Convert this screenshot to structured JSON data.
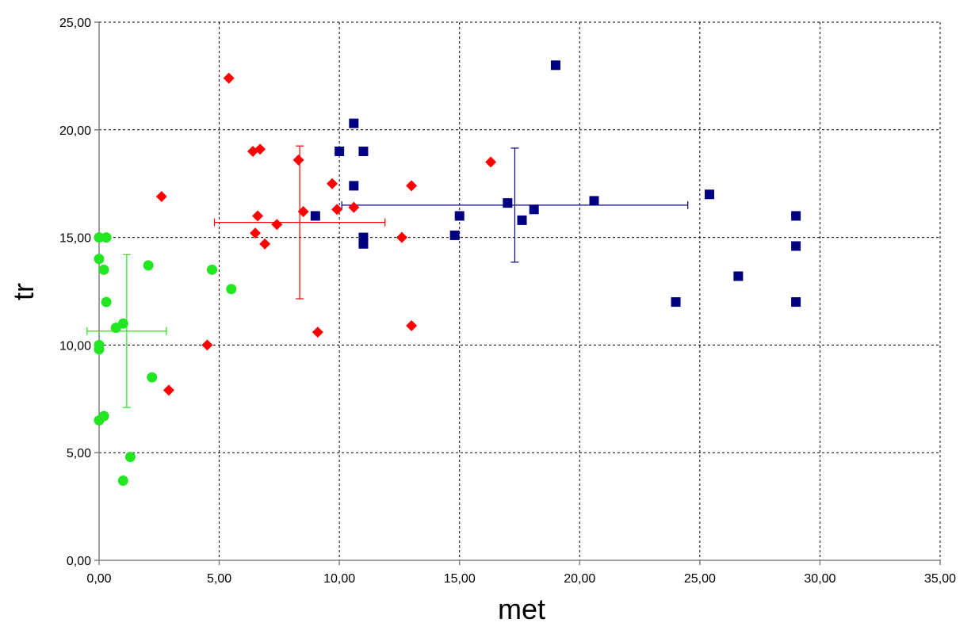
{
  "chart_data": {
    "type": "scatter",
    "title": "",
    "xlabel": "met",
    "ylabel": "tr",
    "xlim": [
      0,
      35
    ],
    "ylim": [
      0,
      25
    ],
    "x_ticks": [
      "0,00",
      "5,00",
      "10,00",
      "15,00",
      "20,00",
      "25,00",
      "30,00",
      "35,00"
    ],
    "y_ticks": [
      "0,00",
      "5,00",
      "10,00",
      "15,00",
      "20,00",
      "25,00"
    ],
    "grid": true,
    "legend": "none",
    "series": [
      {
        "marker": "circle",
        "color": "#22e622",
        "points": [
          [
            0.0,
            15.0
          ],
          [
            0.3,
            15.0
          ],
          [
            0.0,
            14.0
          ],
          [
            0.2,
            13.5
          ],
          [
            0.3,
            12.0
          ],
          [
            2.05,
            13.7
          ],
          [
            4.7,
            13.5
          ],
          [
            5.5,
            12.6
          ],
          [
            1.0,
            11.0
          ],
          [
            0.7,
            10.8
          ],
          [
            0.0,
            10.0
          ],
          [
            0.0,
            9.8
          ],
          [
            2.2,
            8.5
          ],
          [
            0.2,
            6.7
          ],
          [
            0.0,
            6.5
          ],
          [
            1.3,
            4.8
          ],
          [
            1.0,
            3.7
          ]
        ],
        "mean": [
          1.15,
          10.65
        ],
        "x_error": [
          1.65,
          1.65
        ],
        "y_error": [
          3.55,
          3.55
        ]
      },
      {
        "marker": "diamond",
        "color": "#ff0000",
        "points": [
          [
            5.4,
            22.4
          ],
          [
            2.6,
            16.9
          ],
          [
            6.4,
            19.0
          ],
          [
            6.7,
            19.1
          ],
          [
            8.3,
            18.6
          ],
          [
            9.7,
            17.5
          ],
          [
            6.6,
            16.0
          ],
          [
            6.5,
            15.2
          ],
          [
            6.9,
            14.7
          ],
          [
            7.4,
            15.6
          ],
          [
            8.5,
            16.2
          ],
          [
            9.9,
            16.3
          ],
          [
            10.6,
            16.4
          ],
          [
            13.0,
            17.4
          ],
          [
            12.6,
            15.0
          ],
          [
            16.3,
            18.5
          ],
          [
            13.0,
            10.9
          ],
          [
            9.1,
            10.6
          ],
          [
            4.5,
            10.0
          ],
          [
            2.9,
            7.9
          ]
        ],
        "mean": [
          8.35,
          15.7
        ],
        "x_error": [
          3.55,
          3.55
        ],
        "y_error": [
          3.55,
          3.55
        ]
      },
      {
        "marker": "square",
        "color": "#000080",
        "points": [
          [
            19.0,
            23.0
          ],
          [
            10.6,
            20.3
          ],
          [
            10.0,
            19.0
          ],
          [
            11.0,
            19.0
          ],
          [
            10.6,
            17.4
          ],
          [
            9.0,
            16.0
          ],
          [
            11.0,
            15.0
          ],
          [
            11.0,
            14.7
          ],
          [
            14.8,
            15.1
          ],
          [
            15.0,
            16.0
          ],
          [
            17.0,
            16.6
          ],
          [
            17.6,
            15.8
          ],
          [
            18.1,
            16.3
          ],
          [
            20.6,
            16.7
          ],
          [
            25.4,
            17.0
          ],
          [
            29.0,
            16.0
          ],
          [
            29.0,
            14.6
          ],
          [
            26.6,
            13.2
          ],
          [
            24.0,
            12.0
          ],
          [
            29.0,
            12.0
          ]
        ],
        "mean": [
          17.3,
          16.5
        ],
        "x_error": [
          7.2,
          7.2
        ],
        "y_error": [
          2.65,
          2.65
        ]
      }
    ]
  }
}
